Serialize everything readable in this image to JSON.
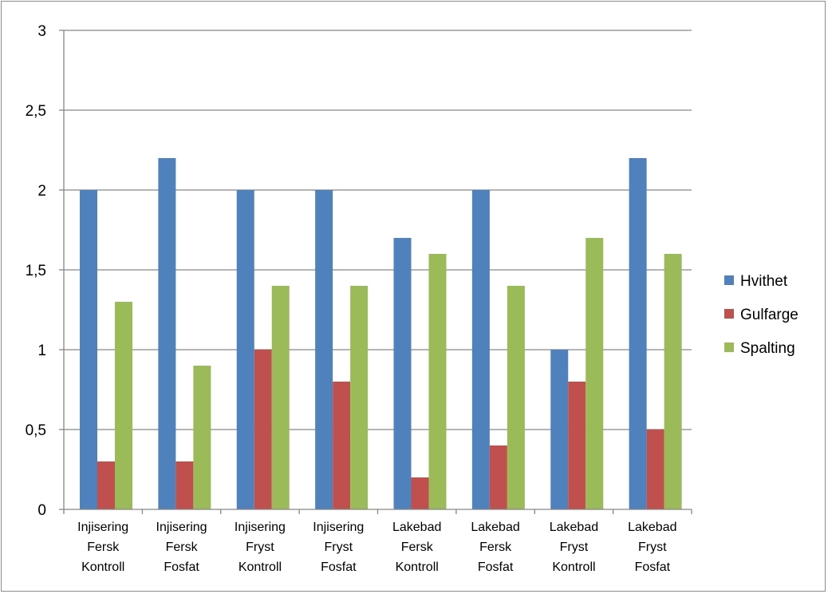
{
  "chart_data": {
    "type": "bar",
    "categories": [
      [
        "Injisering",
        "Fersk",
        "Kontroll"
      ],
      [
        "Injisering",
        "Fersk",
        "Fosfat"
      ],
      [
        "Injisering",
        "Fryst",
        "Kontroll"
      ],
      [
        "Injisering",
        "Fryst",
        "Fosfat"
      ],
      [
        "Lakebad",
        "Fersk",
        "Kontroll"
      ],
      [
        "Lakebad",
        "Fersk",
        "Fosfat"
      ],
      [
        "Lakebad",
        "Fryst",
        "Kontroll"
      ],
      [
        "Lakebad",
        "Fryst",
        "Fosfat"
      ]
    ],
    "series": [
      {
        "name": "Hvithet",
        "color": "#4f81bd",
        "values": [
          2.0,
          2.2,
          2.0,
          2.0,
          1.7,
          2.0,
          1.0,
          2.2
        ]
      },
      {
        "name": "Gulfarge",
        "color": "#c0504d",
        "values": [
          0.3,
          0.3,
          1.0,
          0.8,
          0.2,
          0.4,
          0.8,
          0.5
        ]
      },
      {
        "name": "Spalting",
        "color": "#9bbb59",
        "values": [
          1.3,
          0.9,
          1.4,
          1.4,
          1.6,
          1.4,
          1.7,
          1.6
        ]
      }
    ],
    "ylim": [
      0,
      3
    ],
    "yticks": [
      0,
      0.5,
      1,
      1.5,
      2,
      2.5,
      3
    ],
    "ytick_labels": [
      "0",
      "0,5",
      "1",
      "1,5",
      "2",
      "2,5",
      "3"
    ],
    "grid": true,
    "legend_position": "right",
    "title": "",
    "xlabel": "",
    "ylabel": ""
  }
}
